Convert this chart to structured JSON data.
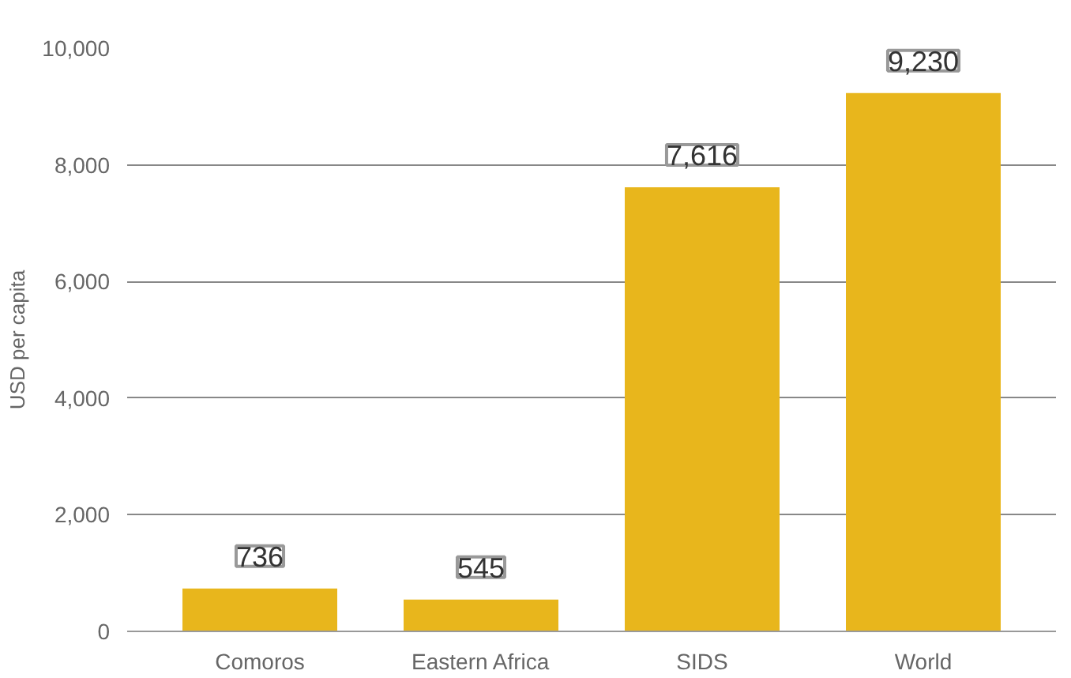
{
  "chart_data": {
    "type": "bar",
    "ylabel": "USD per capita",
    "categories": [
      "Comoros",
      "Eastern Africa",
      "SIDS",
      "World"
    ],
    "values": [
      736,
      545,
      7616,
      9230
    ],
    "color": "#e8b61c",
    "ylim": [
      0,
      10000
    ],
    "yticks": [
      {
        "value": 0,
        "label": "0"
      },
      {
        "value": 2000,
        "label": "2,000"
      },
      {
        "value": 4000,
        "label": "4,000"
      },
      {
        "value": 6000,
        "label": "6,000"
      },
      {
        "value": 8000,
        "label": "8,000"
      },
      {
        "value": 10000,
        "label": "10,000"
      }
    ],
    "value_labels": [
      "736",
      "545",
      "7,616",
      "9,230"
    ],
    "grid": "y"
  }
}
